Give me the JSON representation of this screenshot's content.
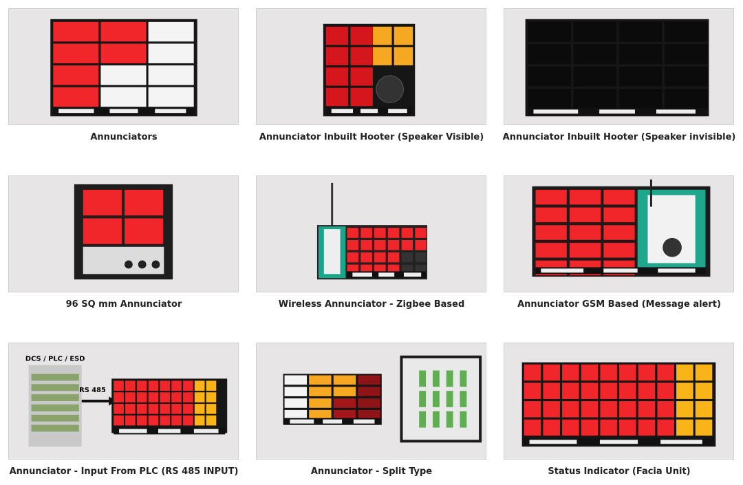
{
  "products": [
    {
      "caption": "Annunciators"
    },
    {
      "caption": "Annunciator Inbuilt Hooter (Speaker Visible)"
    },
    {
      "caption": "Annunciator Inbuilt Hooter (Speaker invisible)"
    },
    {
      "caption": "96 SQ mm Annunciator"
    },
    {
      "caption": "Wireless Annunciator - Zigbee Based"
    },
    {
      "caption": "Annunciator GSM Based (Message alert)"
    },
    {
      "caption": "Annunciator - Input From PLC (RS 485 INPUT)",
      "source_label": "DCS / PLC / ESD",
      "link_label": "RS 485"
    },
    {
      "caption": "Annunciator - Split Type"
    },
    {
      "caption": "Status Indicator (Facia Unit)"
    }
  ]
}
